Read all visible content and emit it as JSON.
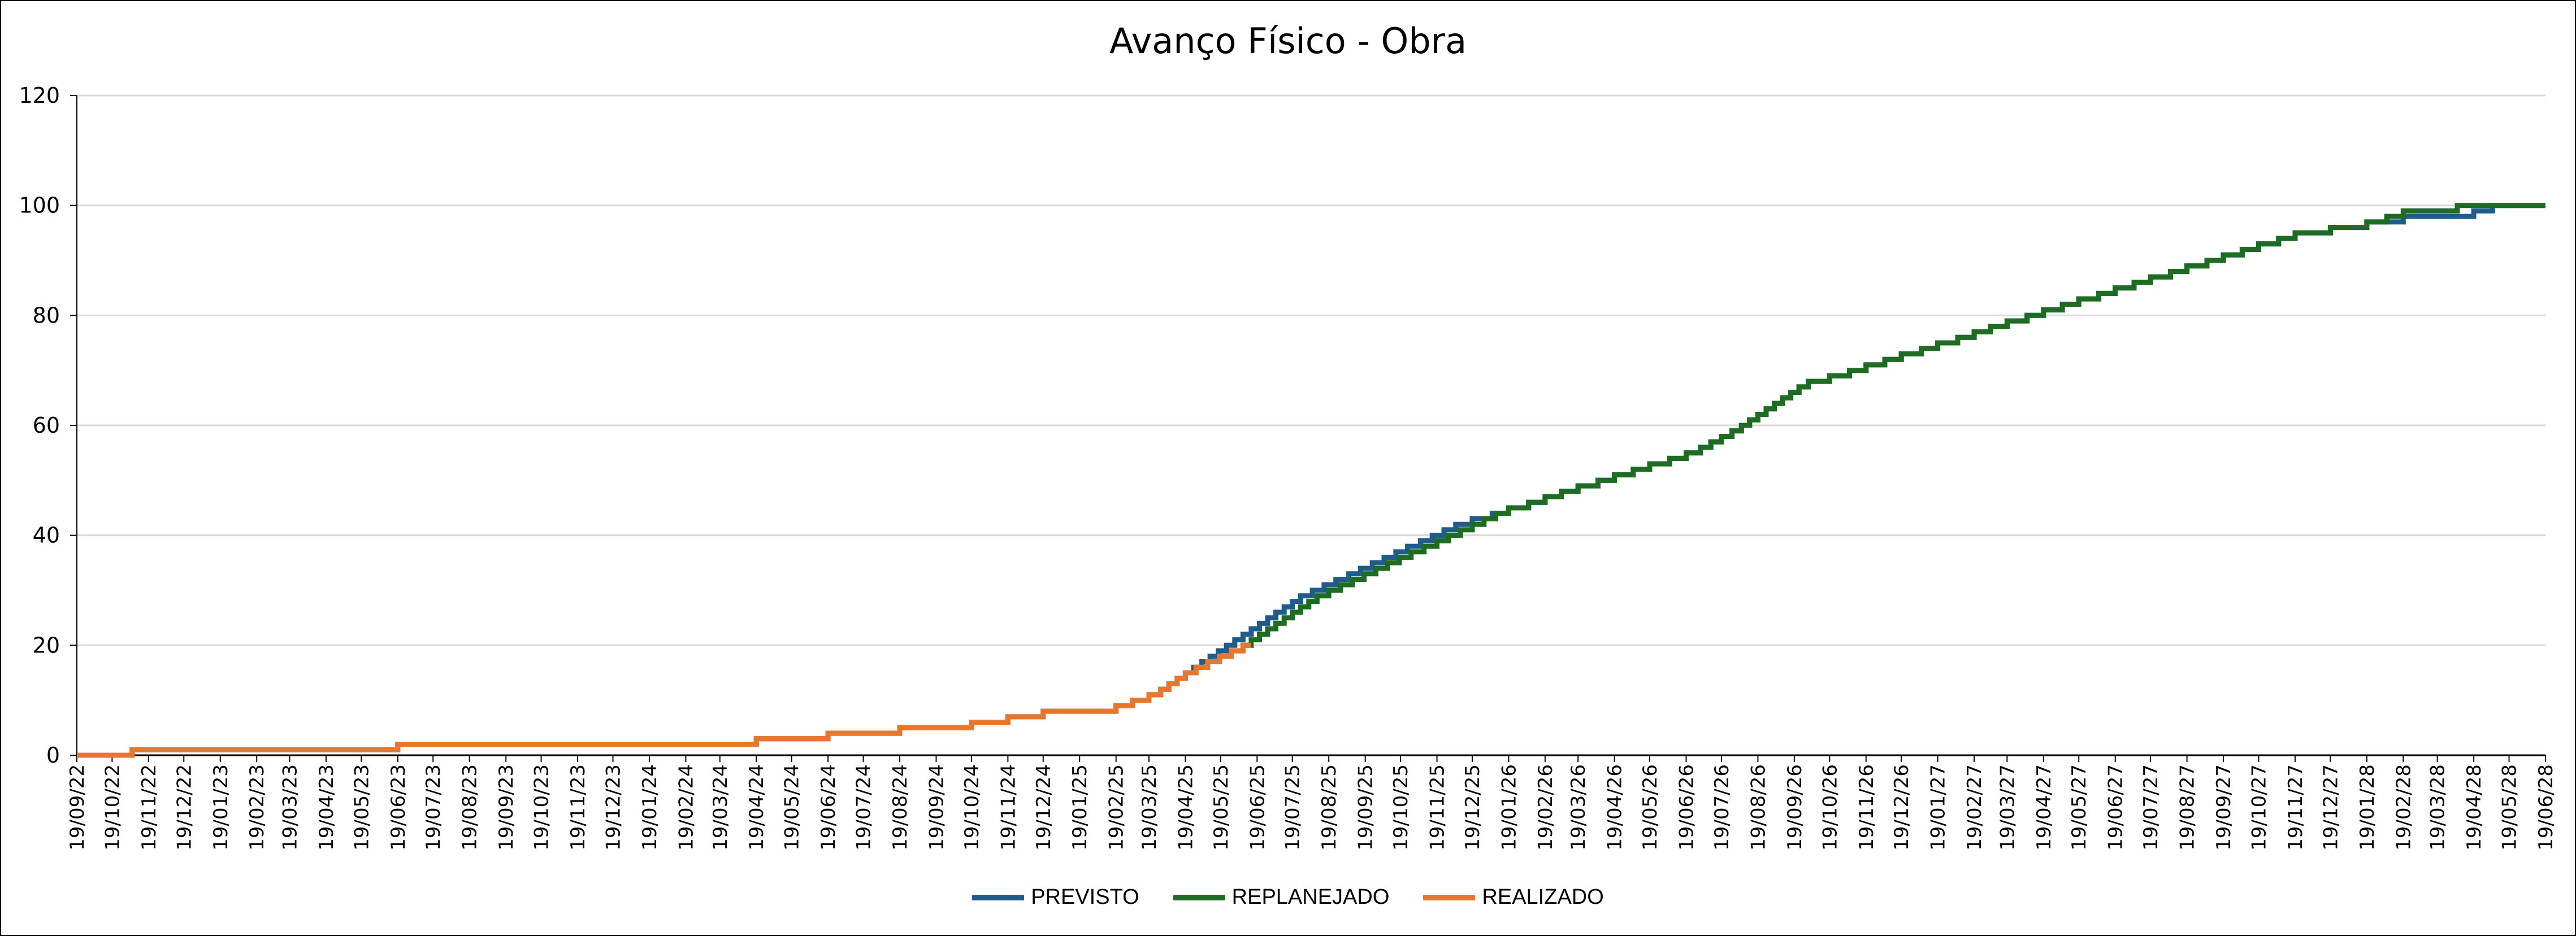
{
  "chart_data": {
    "type": "line",
    "title": "Avanço Físico - Obra",
    "xlabel": "",
    "ylabel": "",
    "ylim": [
      0,
      120
    ],
    "yticks": [
      "0",
      "20",
      "40",
      "60",
      "80",
      "100",
      "120"
    ],
    "xlim": [
      "19/09/22",
      "19/06/28"
    ],
    "xticks": [
      "19/09/22",
      "19/10/22",
      "19/11/22",
      "19/12/22",
      "19/01/23",
      "19/02/23",
      "19/03/23",
      "19/04/23",
      "19/05/23",
      "19/06/23",
      "19/07/23",
      "19/08/23",
      "19/09/23",
      "19/10/23",
      "19/11/23",
      "19/12/23",
      "19/01/24",
      "19/02/24",
      "19/03/24",
      "19/04/24",
      "19/05/24",
      "19/06/24",
      "19/07/24",
      "19/08/24",
      "19/09/24",
      "19/10/24",
      "19/11/24",
      "19/12/24",
      "19/01/25",
      "19/02/25",
      "19/03/25",
      "19/04/25",
      "19/05/25",
      "19/06/25",
      "19/07/25",
      "19/08/25",
      "19/09/25",
      "19/10/25",
      "19/11/25",
      "19/12/25",
      "19/01/26",
      "19/02/26",
      "19/03/26",
      "19/04/26",
      "19/05/26",
      "19/06/26",
      "19/07/26",
      "19/08/26",
      "19/09/26",
      "19/10/26",
      "19/11/26",
      "19/12/26",
      "19/01/27",
      "19/02/27",
      "19/03/27",
      "19/04/27",
      "19/05/27",
      "19/06/27",
      "19/07/27",
      "19/08/27",
      "19/09/27",
      "19/10/27",
      "19/11/27",
      "19/12/27",
      "19/01/28",
      "19/02/28",
      "19/03/28",
      "19/04/28",
      "19/05/28",
      "19/06/28"
    ],
    "grid": "horizontal",
    "legend_position": "bottom",
    "series": [
      {
        "name": "PREVISTO",
        "color": "#1f5c8b",
        "step": true,
        "points": [
          [
            "19/09/22",
            0
          ],
          [
            "05/11/22",
            1
          ],
          [
            "19/06/23",
            2
          ],
          [
            "19/04/24",
            3
          ],
          [
            "19/05/24",
            3
          ],
          [
            "19/06/24",
            4
          ],
          [
            "19/07/24",
            4
          ],
          [
            "19/08/24",
            5
          ],
          [
            "19/09/24",
            5
          ],
          [
            "19/10/24",
            6
          ],
          [
            "19/11/24",
            7
          ],
          [
            "19/12/24",
            8
          ],
          [
            "19/01/25",
            8
          ],
          [
            "19/02/25",
            9
          ],
          [
            "05/03/25",
            10
          ],
          [
            "19/03/25",
            11
          ],
          [
            "29/03/25",
            12
          ],
          [
            "05/04/25",
            13
          ],
          [
            "12/04/25",
            14
          ],
          [
            "19/04/25",
            15
          ],
          [
            "26/04/25",
            16
          ],
          [
            "03/05/25",
            17
          ],
          [
            "10/05/25",
            18
          ],
          [
            "17/05/25",
            19
          ],
          [
            "24/05/25",
            20
          ],
          [
            "31/05/25",
            21
          ],
          [
            "07/06/25",
            22
          ],
          [
            "14/06/25",
            23
          ],
          [
            "21/06/25",
            24
          ],
          [
            "28/06/25",
            25
          ],
          [
            "05/07/25",
            26
          ],
          [
            "12/07/25",
            27
          ],
          [
            "19/07/25",
            28
          ],
          [
            "26/07/25",
            29
          ],
          [
            "05/08/25",
            30
          ],
          [
            "15/08/25",
            31
          ],
          [
            "25/08/25",
            32
          ],
          [
            "05/09/25",
            33
          ],
          [
            "15/09/25",
            34
          ],
          [
            "25/09/25",
            35
          ],
          [
            "05/10/25",
            36
          ],
          [
            "15/10/25",
            37
          ],
          [
            "25/10/25",
            38
          ],
          [
            "05/11/25",
            39
          ],
          [
            "15/11/25",
            40
          ],
          [
            "25/11/25",
            41
          ],
          [
            "05/12/25",
            42
          ],
          [
            "19/12/25",
            43
          ],
          [
            "05/01/26",
            44
          ],
          [
            "19/01/26",
            45
          ],
          [
            "05/02/26",
            46
          ],
          [
            "19/02/26",
            47
          ],
          [
            "05/03/26",
            48
          ],
          [
            "19/03/26",
            49
          ],
          [
            "05/04/26",
            50
          ],
          [
            "19/04/26",
            51
          ],
          [
            "05/05/26",
            52
          ],
          [
            "19/05/26",
            53
          ],
          [
            "05/06/26",
            54
          ],
          [
            "19/06/26",
            55
          ],
          [
            "01/07/26",
            56
          ],
          [
            "10/07/26",
            57
          ],
          [
            "19/07/26",
            58
          ],
          [
            "28/07/26",
            59
          ],
          [
            "05/08/26",
            60
          ],
          [
            "12/08/26",
            61
          ],
          [
            "19/08/26",
            62
          ],
          [
            "26/08/26",
            63
          ],
          [
            "02/09/26",
            64
          ],
          [
            "09/09/26",
            65
          ],
          [
            "16/09/26",
            66
          ],
          [
            "23/09/26",
            67
          ],
          [
            "01/10/26",
            68
          ],
          [
            "19/10/26",
            69
          ],
          [
            "05/11/26",
            70
          ],
          [
            "19/11/26",
            71
          ],
          [
            "05/12/26",
            72
          ],
          [
            "19/12/26",
            73
          ],
          [
            "05/01/27",
            74
          ],
          [
            "19/01/27",
            75
          ],
          [
            "05/02/27",
            76
          ],
          [
            "19/02/27",
            77
          ],
          [
            "05/03/27",
            78
          ],
          [
            "19/03/27",
            79
          ],
          [
            "05/04/27",
            80
          ],
          [
            "19/04/27",
            81
          ],
          [
            "05/05/27",
            82
          ],
          [
            "19/05/27",
            83
          ],
          [
            "05/06/27",
            84
          ],
          [
            "19/06/27",
            85
          ],
          [
            "05/07/27",
            86
          ],
          [
            "19/07/27",
            87
          ],
          [
            "05/08/27",
            88
          ],
          [
            "19/08/27",
            89
          ],
          [
            "05/09/27",
            90
          ],
          [
            "19/09/27",
            91
          ],
          [
            "05/10/27",
            92
          ],
          [
            "19/10/27",
            93
          ],
          [
            "05/11/27",
            94
          ],
          [
            "19/11/27",
            95
          ],
          [
            "19/12/27",
            96
          ],
          [
            "19/01/28",
            97
          ],
          [
            "19/02/28",
            98
          ],
          [
            "19/04/28",
            99
          ],
          [
            "05/05/28",
            100
          ],
          [
            "19/06/28",
            100
          ]
        ]
      },
      {
        "name": "REPLANEJADO",
        "color": "#1e6b22",
        "step": true,
        "points": [
          [
            "19/04/25",
            15
          ],
          [
            "28/04/25",
            16
          ],
          [
            "08/05/25",
            17
          ],
          [
            "18/05/25",
            18
          ],
          [
            "28/05/25",
            19
          ],
          [
            "07/06/25",
            20
          ],
          [
            "14/06/25",
            21
          ],
          [
            "21/06/25",
            22
          ],
          [
            "28/06/25",
            23
          ],
          [
            "05/07/25",
            24
          ],
          [
            "12/07/25",
            25
          ],
          [
            "19/07/25",
            26
          ],
          [
            "26/07/25",
            27
          ],
          [
            "02/08/25",
            28
          ],
          [
            "09/08/25",
            29
          ],
          [
            "19/08/25",
            30
          ],
          [
            "29/08/25",
            31
          ],
          [
            "08/09/25",
            32
          ],
          [
            "18/09/25",
            33
          ],
          [
            "28/09/25",
            34
          ],
          [
            "08/10/25",
            35
          ],
          [
            "18/10/25",
            36
          ],
          [
            "28/10/25",
            37
          ],
          [
            "08/11/25",
            38
          ],
          [
            "19/11/25",
            39
          ],
          [
            "29/11/25",
            40
          ],
          [
            "09/12/25",
            41
          ],
          [
            "19/12/25",
            42
          ],
          [
            "29/12/25",
            43
          ],
          [
            "08/01/26",
            44
          ],
          [
            "19/01/26",
            45
          ],
          [
            "05/02/26",
            46
          ],
          [
            "19/02/26",
            47
          ],
          [
            "05/03/26",
            48
          ],
          [
            "19/03/26",
            49
          ],
          [
            "05/04/26",
            50
          ],
          [
            "19/04/26",
            51
          ],
          [
            "05/05/26",
            52
          ],
          [
            "19/05/26",
            53
          ],
          [
            "05/06/26",
            54
          ],
          [
            "19/06/26",
            55
          ],
          [
            "01/07/26",
            56
          ],
          [
            "10/07/26",
            57
          ],
          [
            "19/07/26",
            58
          ],
          [
            "28/07/26",
            59
          ],
          [
            "05/08/26",
            60
          ],
          [
            "12/08/26",
            61
          ],
          [
            "19/08/26",
            62
          ],
          [
            "26/08/26",
            63
          ],
          [
            "02/09/26",
            64
          ],
          [
            "09/09/26",
            65
          ],
          [
            "16/09/26",
            66
          ],
          [
            "23/09/26",
            67
          ],
          [
            "01/10/26",
            68
          ],
          [
            "19/10/26",
            69
          ],
          [
            "05/11/26",
            70
          ],
          [
            "19/11/26",
            71
          ],
          [
            "05/12/26",
            72
          ],
          [
            "19/12/26",
            73
          ],
          [
            "05/01/27",
            74
          ],
          [
            "19/01/27",
            75
          ],
          [
            "05/02/27",
            76
          ],
          [
            "19/02/27",
            77
          ],
          [
            "05/03/27",
            78
          ],
          [
            "19/03/27",
            79
          ],
          [
            "05/04/27",
            80
          ],
          [
            "19/04/27",
            81
          ],
          [
            "05/05/27",
            82
          ],
          [
            "19/05/27",
            83
          ],
          [
            "05/06/27",
            84
          ],
          [
            "19/06/27",
            85
          ],
          [
            "05/07/27",
            86
          ],
          [
            "19/07/27",
            87
          ],
          [
            "05/08/27",
            88
          ],
          [
            "19/08/27",
            89
          ],
          [
            "05/09/27",
            90
          ],
          [
            "19/09/27",
            91
          ],
          [
            "05/10/27",
            92
          ],
          [
            "19/10/27",
            93
          ],
          [
            "05/11/27",
            94
          ],
          [
            "19/11/27",
            95
          ],
          [
            "19/12/27",
            96
          ],
          [
            "19/01/28",
            97
          ],
          [
            "05/02/28",
            98
          ],
          [
            "19/02/28",
            99
          ],
          [
            "05/04/28",
            100
          ],
          [
            "19/06/28",
            100
          ]
        ]
      },
      {
        "name": "REALIZADO",
        "color": "#e8772e",
        "step": true,
        "points": [
          [
            "19/09/22",
            0
          ],
          [
            "05/11/22",
            1
          ],
          [
            "19/06/23",
            2
          ],
          [
            "19/04/24",
            3
          ],
          [
            "19/05/24",
            3
          ],
          [
            "19/06/24",
            4
          ],
          [
            "19/07/24",
            4
          ],
          [
            "19/08/24",
            5
          ],
          [
            "19/09/24",
            5
          ],
          [
            "19/10/24",
            6
          ],
          [
            "19/11/24",
            7
          ],
          [
            "19/12/24",
            8
          ],
          [
            "19/01/25",
            8
          ],
          [
            "19/02/25",
            9
          ],
          [
            "05/03/25",
            10
          ],
          [
            "19/03/25",
            11
          ],
          [
            "29/03/25",
            12
          ],
          [
            "05/04/25",
            13
          ],
          [
            "12/04/25",
            14
          ],
          [
            "19/04/25",
            15
          ],
          [
            "28/04/25",
            16
          ],
          [
            "08/05/25",
            17
          ],
          [
            "18/05/25",
            18
          ],
          [
            "28/05/25",
            19
          ],
          [
            "07/06/25",
            20
          ],
          [
            "14/06/25",
            20
          ]
        ]
      }
    ]
  }
}
